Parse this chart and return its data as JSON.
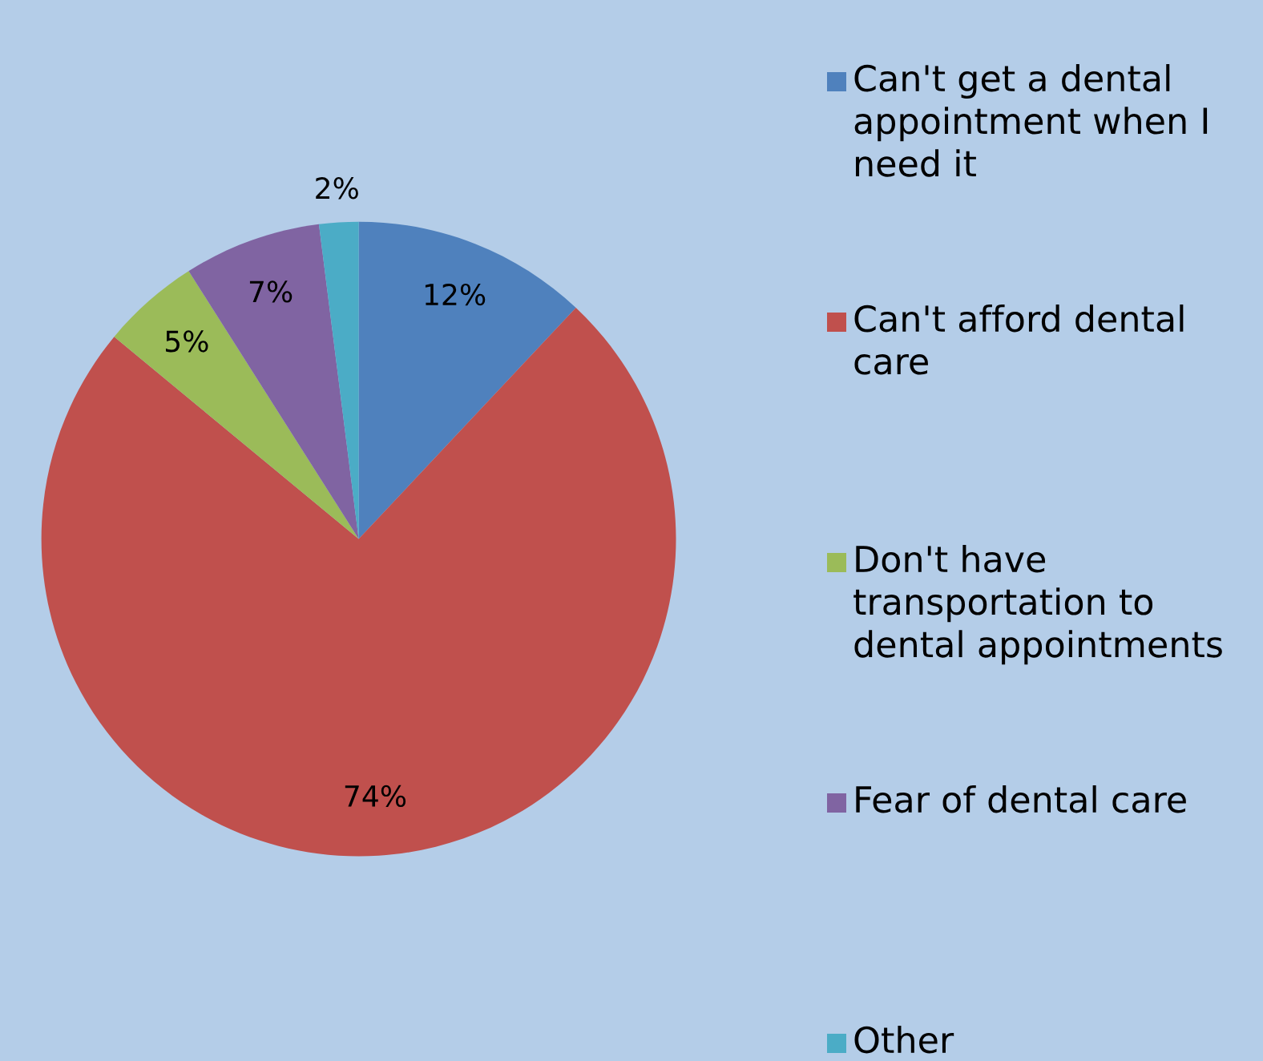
{
  "chart_data": {
    "type": "pie",
    "categories": [
      "Can't get a dental appointment when I need it",
      "Can't afford dental care",
      "Don't have transportation to dental appointments",
      "Fear of dental care",
      "Other"
    ],
    "values": [
      12,
      74,
      5,
      7,
      2
    ],
    "colors": [
      "#4f81bd",
      "#c0504d",
      "#9bbb59",
      "#8064a2",
      "#4bacc6"
    ],
    "value_labels": [
      "12%",
      "74%",
      "5%",
      "7%",
      "2%"
    ],
    "legend": "right"
  }
}
